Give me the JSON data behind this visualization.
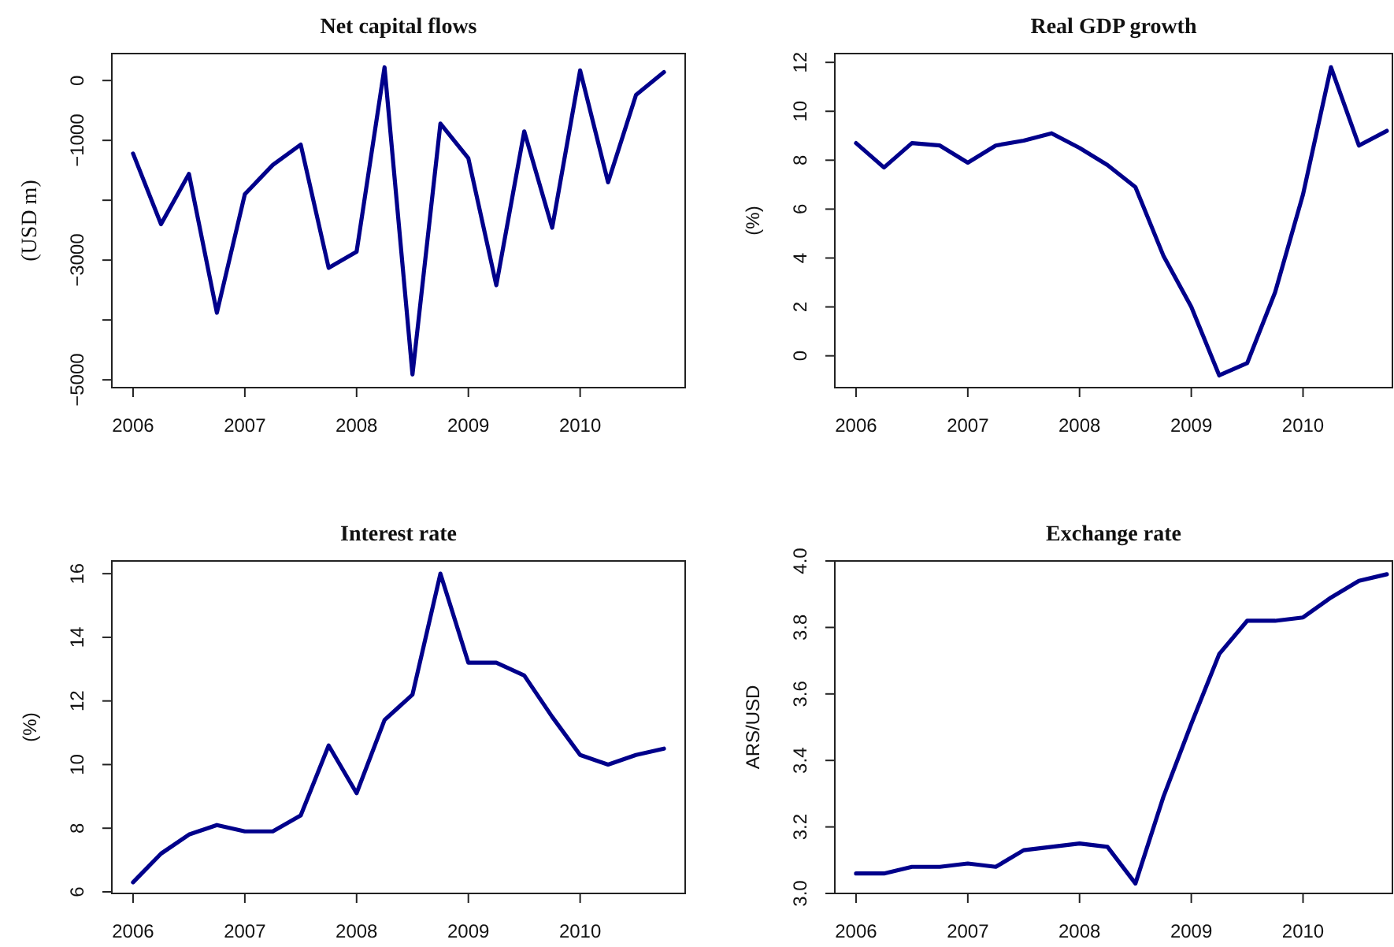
{
  "chart_data": [
    {
      "type": "line",
      "title": "Net capital flows",
      "ylabel": "(USD m)",
      "x": [
        2006,
        2006.25,
        2006.5,
        2006.75,
        2007,
        2007.25,
        2007.5,
        2007.75,
        2008,
        2008.25,
        2008.5,
        2008.75,
        2009,
        2009.25,
        2009.5,
        2009.75,
        2010,
        2010.25,
        2010.5,
        2010.75
      ],
      "xlim": [
        2005.81,
        2010.94
      ],
      "xticks": [
        2006,
        2007,
        2008,
        2009,
        2010
      ],
      "ylim": [
        -5130,
        450
      ],
      "yticks": [
        -5000,
        {
          "value": -4000,
          "label": null
        },
        -3000,
        {
          "value": -2000,
          "label": null
        },
        -1000,
        0
      ],
      "series": [
        {
          "color": "#00008b",
          "values": [
            -1220,
            -2400,
            -1560,
            -3880,
            -1900,
            -1410,
            -1070,
            -3130,
            -2860,
            220,
            -4910,
            -720,
            -1300,
            -3420,
            -850,
            -2460,
            170,
            -1700,
            -240,
            140
          ]
        }
      ]
    },
    {
      "type": "line",
      "title": "Real GDP growth",
      "ylabel": "(%)",
      "x": [
        2006,
        2006.25,
        2006.5,
        2006.75,
        2007,
        2007.25,
        2007.5,
        2007.75,
        2008,
        2008.25,
        2008.5,
        2008.75,
        2009,
        2009.25,
        2009.5,
        2009.75,
        2010,
        2010.25,
        2010.5,
        2010.75
      ],
      "xlim": [
        2005.81,
        2010.8
      ],
      "xticks": [
        2006,
        2007,
        2008,
        2009,
        2010
      ],
      "ylim": [
        -1.3,
        12.36
      ],
      "yticks": [
        0,
        2,
        4,
        6,
        8,
        10,
        12
      ],
      "series": [
        {
          "color": "#00008b",
          "values": [
            8.7,
            7.7,
            8.7,
            8.6,
            7.9,
            8.6,
            8.8,
            9.1,
            8.5,
            7.8,
            6.9,
            4.1,
            2.0,
            -0.8,
            -0.3,
            2.6,
            6.6,
            11.8,
            8.6,
            9.2
          ]
        }
      ]
    },
    {
      "type": "line",
      "title": "Interest rate",
      "ylabel": "(%)",
      "x": [
        2006,
        2006.25,
        2006.5,
        2006.75,
        2007,
        2007.25,
        2007.5,
        2007.75,
        2008,
        2008.25,
        2008.5,
        2008.75,
        2009,
        2009.25,
        2009.5,
        2009.75,
        2010,
        2010.25,
        2010.5,
        2010.75
      ],
      "xlim": [
        2005.81,
        2010.94
      ],
      "xticks": [
        2006,
        2007,
        2008,
        2009,
        2010
      ],
      "ylim": [
        5.95,
        16.4
      ],
      "yticks": [
        6,
        8,
        10,
        12,
        14,
        16
      ],
      "series": [
        {
          "color": "#00008b",
          "values": [
            6.3,
            7.2,
            7.8,
            8.1,
            7.9,
            7.9,
            8.4,
            10.6,
            9.1,
            11.4,
            12.2,
            16.0,
            13.2,
            13.2,
            12.8,
            11.5,
            10.3,
            10.0,
            10.3,
            10.5
          ]
        }
      ]
    },
    {
      "type": "line",
      "title": "Exchange rate",
      "ylabel": "ARS/USD",
      "x": [
        2006,
        2006.25,
        2006.5,
        2006.75,
        2007,
        2007.25,
        2007.5,
        2007.75,
        2008,
        2008.25,
        2008.5,
        2008.75,
        2009,
        2009.25,
        2009.5,
        2009.75,
        2010,
        2010.25,
        2010.5,
        2010.75
      ],
      "xlim": [
        2005.81,
        2010.8
      ],
      "xticks": [
        2006,
        2007,
        2008,
        2009,
        2010
      ],
      "ylim": [
        3.0,
        4.0
      ],
      "yticks": [
        {
          "value": 3,
          "label": "3.0"
        },
        3.2,
        3.4,
        3.6,
        3.8,
        {
          "value": 4,
          "label": "4.0"
        }
      ],
      "series": [
        {
          "color": "#00008b",
          "values": [
            3.06,
            3.06,
            3.08,
            3.08,
            3.09,
            3.08,
            3.13,
            3.14,
            3.15,
            3.14,
            3.03,
            3.29,
            3.51,
            3.72,
            3.82,
            3.82,
            3.83,
            3.89,
            3.94,
            3.96
          ]
        }
      ]
    }
  ]
}
